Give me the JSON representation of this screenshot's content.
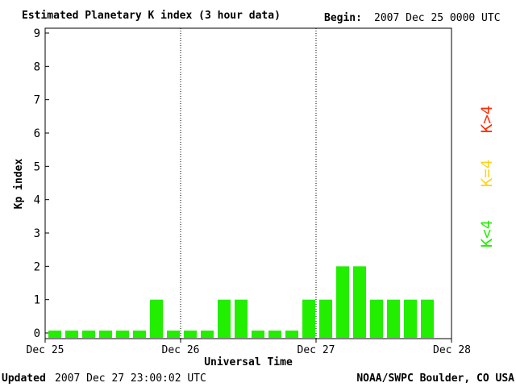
{
  "header": {
    "title": "Estimated Planetary K index (3 hour data)",
    "begin_label": "Begin:",
    "begin_value": "2007 Dec 25 0000 UTC"
  },
  "footer": {
    "updated_label": "Updated",
    "updated_value": "2007 Dec 27 23:00:02 UTC",
    "source": "NOAA/SWPC Boulder, CO USA"
  },
  "legend": {
    "items": [
      {
        "label": "K>4",
        "color": "#ff2a00"
      },
      {
        "label": "K=4",
        "color": "#ffd21a"
      },
      {
        "label": "K<4",
        "color": "#22ee00"
      }
    ]
  },
  "chart_data": {
    "type": "bar",
    "title": "Estimated Planetary K index (3 hour data)",
    "xlabel": "Universal Time",
    "ylabel": "Kp index",
    "ylim": [
      0,
      9
    ],
    "yticks": [
      0,
      1,
      2,
      3,
      4,
      5,
      6,
      7,
      8,
      9
    ],
    "xtick_labels": [
      "Dec 25",
      "Dec 26",
      "Dec 27",
      "Dec 28"
    ],
    "x_unit": "3-hour interval",
    "grid": false,
    "day_separators": [
      "Dec 26",
      "Dec 27"
    ],
    "bar_color": "#22ee00",
    "values": [
      0,
      0,
      0,
      0,
      0,
      0,
      1,
      0,
      0,
      0,
      1,
      1,
      0,
      0,
      0,
      1,
      1,
      2,
      2,
      1,
      1,
      1,
      1
    ]
  }
}
